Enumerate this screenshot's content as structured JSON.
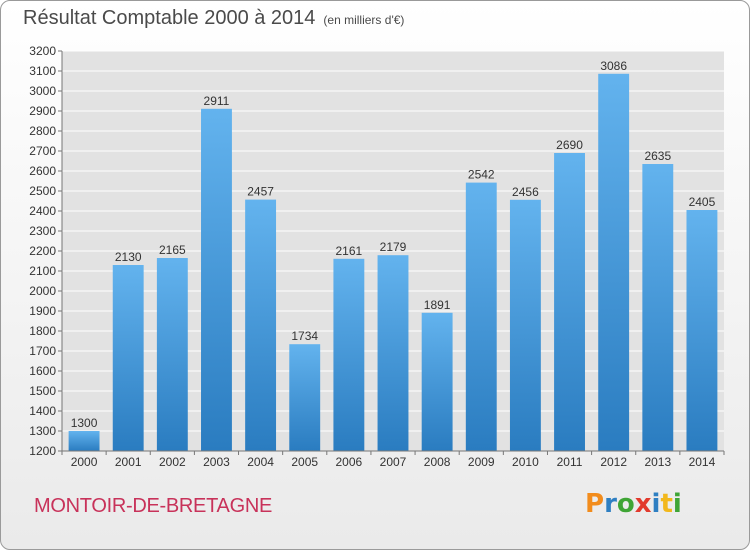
{
  "title": {
    "main": "Résultat Comptable 2000 à 2014",
    "subtitle": "(en milliers d'€)"
  },
  "place_name": "MONTOIR-DE-BRETAGNE",
  "logo": {
    "text": "Proxiti",
    "letter_colors": [
      "#f28c1c",
      "#2e7fc2",
      "#3fa535",
      "#e23a2d",
      "#2e7fc2",
      "#f2b81c",
      "#3fa535"
    ]
  },
  "colors": {
    "bar_light": "#63b3ee",
    "bar_dark": "#2a7cc0",
    "grid": "#ffffff",
    "plot_bg": "#e2e2e2",
    "place": "#c8325a"
  },
  "chart_data": {
    "type": "bar",
    "categories": [
      "2000",
      "2001",
      "2002",
      "2003",
      "2004",
      "2005",
      "2006",
      "2007",
      "2008",
      "2009",
      "2010",
      "2011",
      "2012",
      "2013",
      "2014"
    ],
    "values": [
      1300,
      2130,
      2165,
      2911,
      2457,
      1734,
      2161,
      2179,
      1891,
      2542,
      2456,
      2690,
      3086,
      2635,
      2405
    ],
    "data_labels": [
      "1300",
      "2130",
      "2165",
      "2911",
      "2457",
      "1734",
      "2161",
      "2179",
      "1891",
      "2542",
      "2456",
      "2690",
      "3086",
      "2635",
      "2405"
    ],
    "ylim": [
      1200,
      3200
    ],
    "yticks": [
      1200,
      1300,
      1400,
      1500,
      1600,
      1700,
      1800,
      1900,
      2000,
      2100,
      2200,
      2300,
      2400,
      2500,
      2600,
      2700,
      2800,
      2900,
      3000,
      3100,
      3200
    ],
    "grid": true,
    "legend": "none",
    "xlabel": "",
    "ylabel": ""
  }
}
